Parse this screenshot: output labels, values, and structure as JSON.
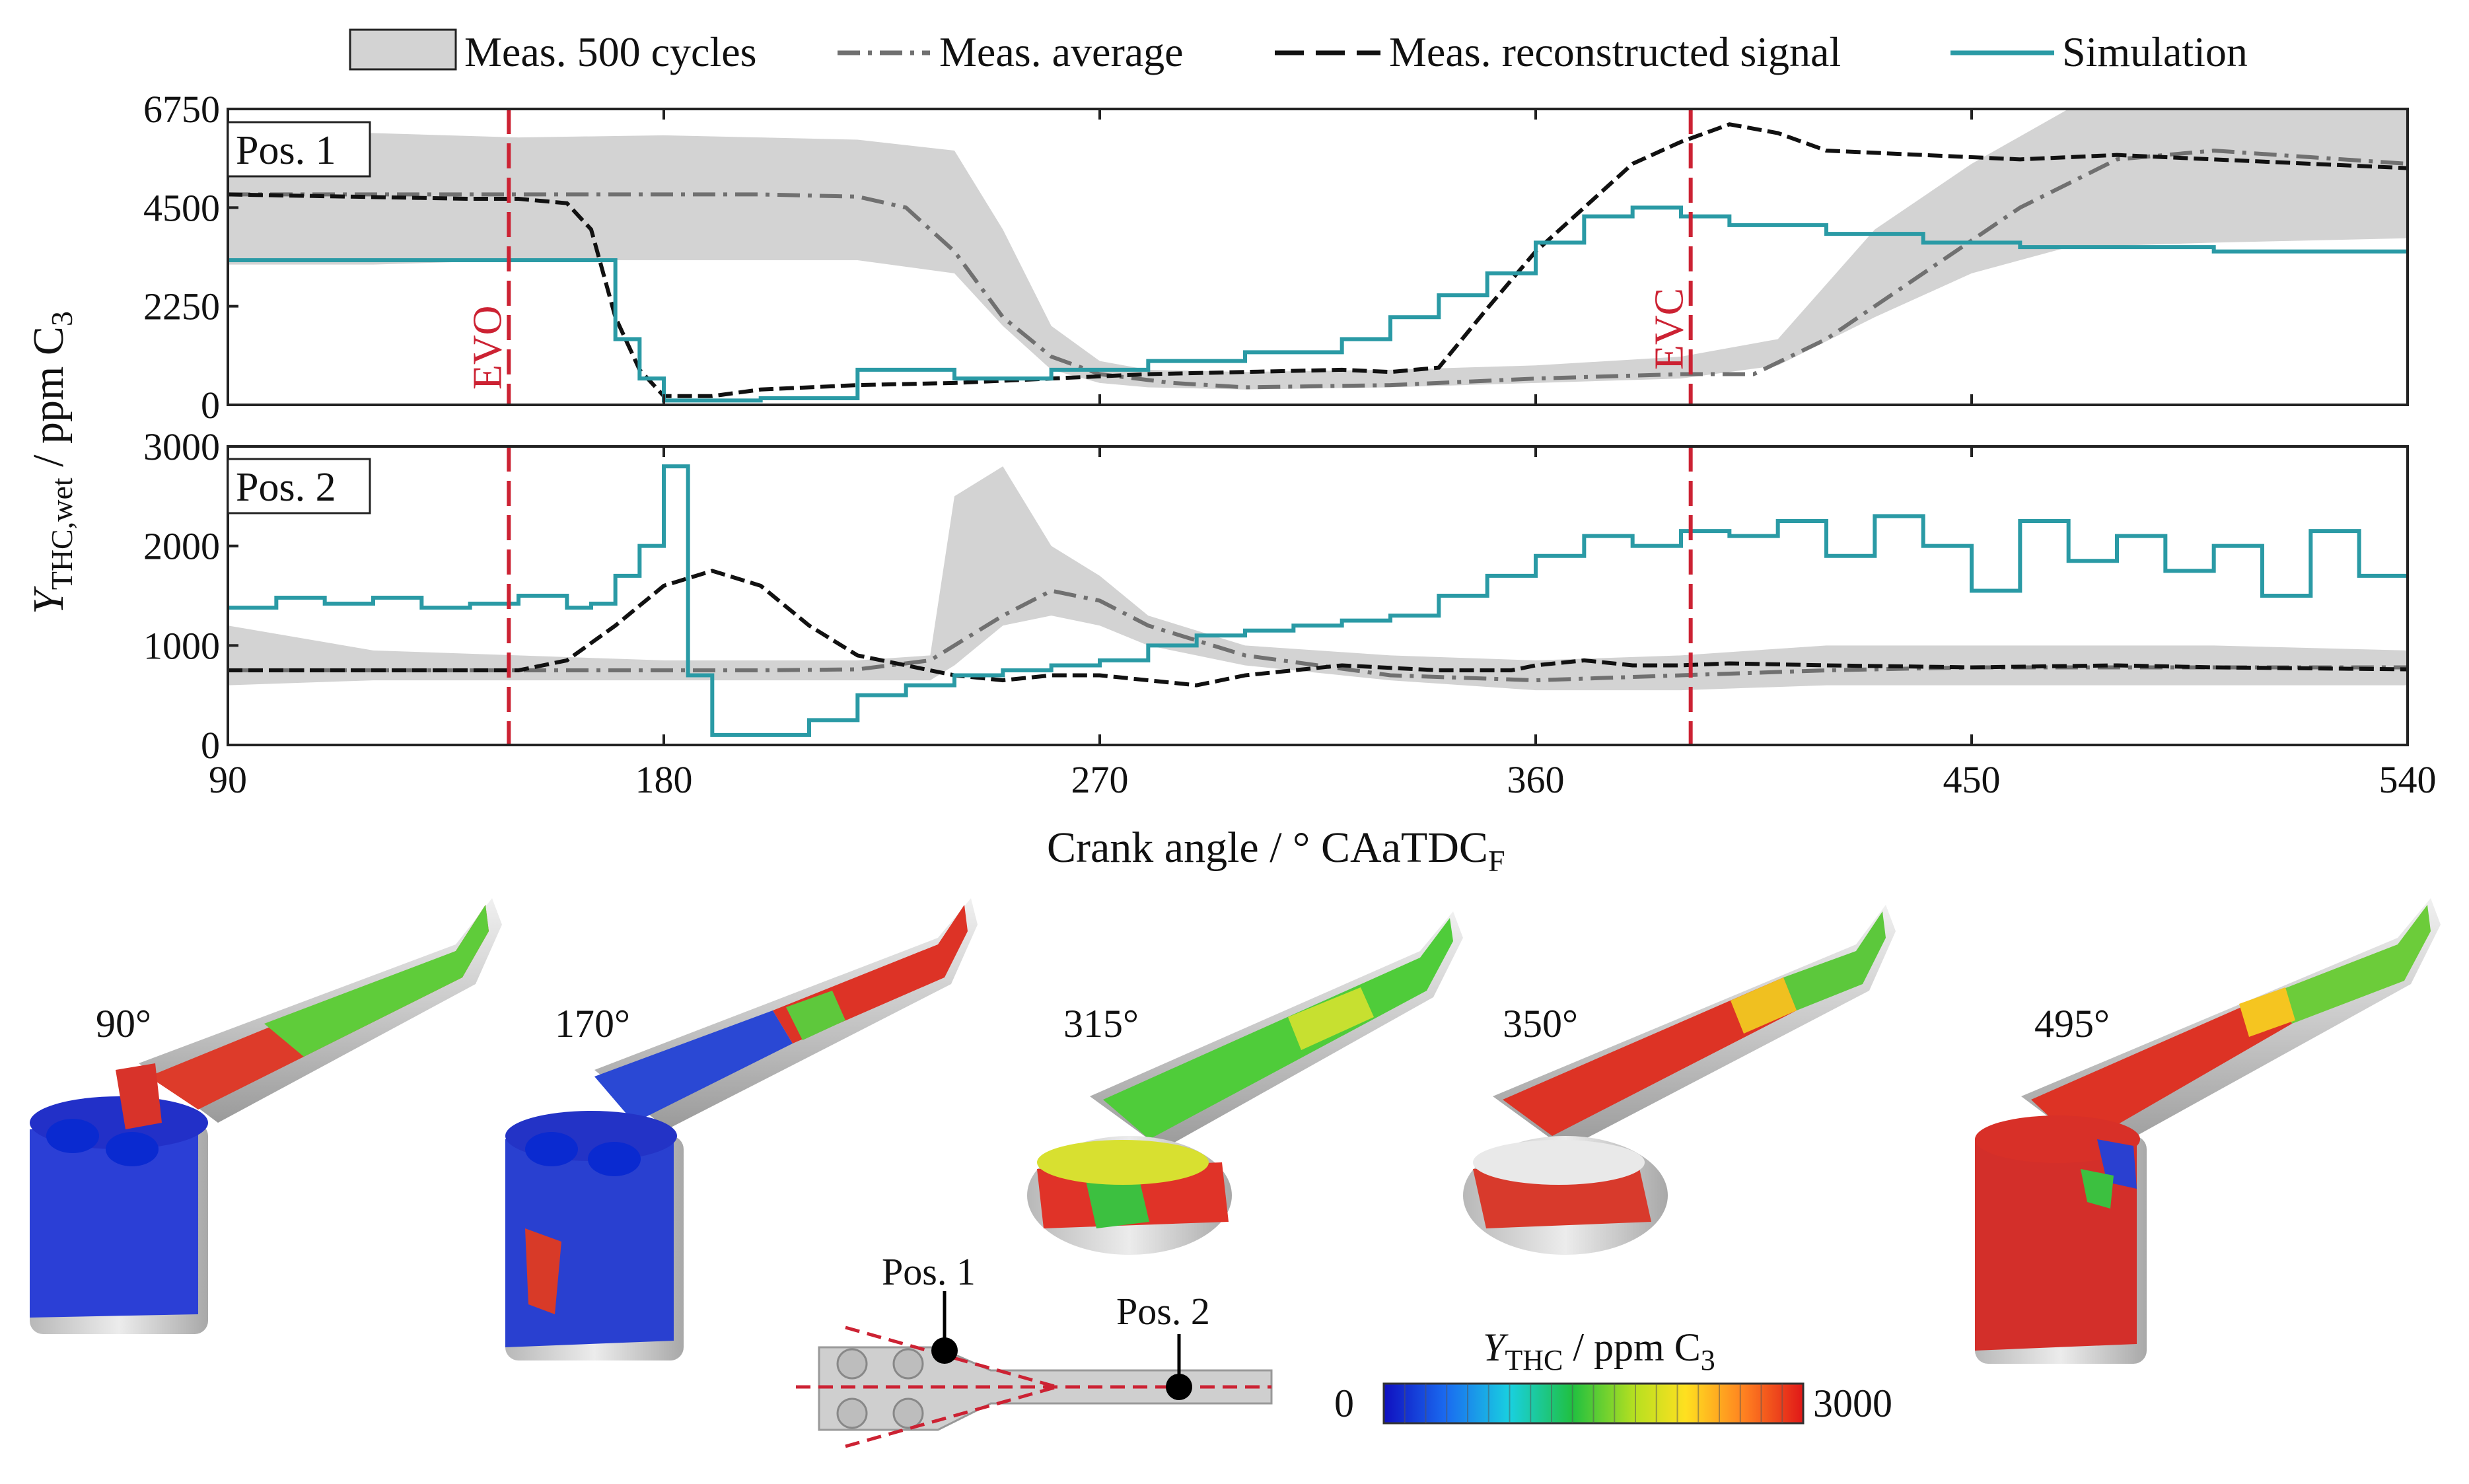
{
  "legend": {
    "band": "Meas. 500 cycles",
    "avg": "Meas. average",
    "recon": "Meas. reconstructed signal",
    "sim": "Simulation"
  },
  "colors": {
    "band": "#d3d3d3",
    "avg": "#707070",
    "recon": "#111111",
    "sim": "#2a9aa5",
    "valve": "#cc2233"
  },
  "axes": {
    "ylabel": "Y",
    "ylabel_sub": "THC,wet",
    "ylabel_rest": " / ppm C",
    "ylabel_sub2": "3",
    "xlabel": "Crank angle / ° CAaTDC",
    "xlabel_sub": "F",
    "xticks": [
      "90",
      "180",
      "270",
      "360",
      "450",
      "540"
    ]
  },
  "chart_data": [
    {
      "type": "line",
      "panel_label": "Pos. 1",
      "xlim": [
        90,
        540
      ],
      "ylim": [
        0,
        6750
      ],
      "yticks": [
        "0",
        "2250",
        "4500",
        "6750"
      ],
      "xlabel": "Crank angle / ° CAaTDC_F",
      "ylabel": "Y_THC,wet / ppm C_3",
      "valve_lines": [
        {
          "x": 148,
          "label": "EVO"
        },
        {
          "x": 392,
          "label": "EVC"
        }
      ],
      "band": {
        "x": [
          90,
          120,
          150,
          180,
          200,
          220,
          240,
          250,
          260,
          270,
          280,
          300,
          330,
          360,
          390,
          410,
          430,
          450,
          470,
          500,
          540
        ],
        "lower": [
          3200,
          3200,
          3300,
          3300,
          3300,
          3300,
          3000,
          1800,
          800,
          500,
          400,
          350,
          400,
          500,
          600,
          900,
          2000,
          3000,
          3600,
          3700,
          3800
        ],
        "upper": [
          6200,
          6200,
          6100,
          6150,
          6100,
          6050,
          5800,
          4000,
          1800,
          1000,
          800,
          750,
          800,
          900,
          1100,
          1500,
          4000,
          5500,
          6750,
          6750,
          6750
        ]
      },
      "series": [
        {
          "name": "Meas. average",
          "x": [
            90,
            150,
            200,
            220,
            230,
            240,
            250,
            260,
            270,
            285,
            300,
            330,
            360,
            390,
            405,
            420,
            440,
            460,
            480,
            500,
            540
          ],
          "y": [
            4800,
            4800,
            4800,
            4750,
            4500,
            3500,
            2000,
            1100,
            700,
            500,
            400,
            450,
            600,
            700,
            700,
            1500,
            3000,
            4500,
            5600,
            5800,
            5500
          ]
        },
        {
          "name": "Meas. reconstructed signal",
          "x": [
            90,
            140,
            150,
            160,
            165,
            170,
            175,
            180,
            190,
            200,
            220,
            240,
            260,
            280,
            300,
            320,
            330,
            340,
            350,
            360,
            370,
            380,
            390,
            400,
            410,
            420,
            440,
            460,
            480,
            500,
            540
          ],
          "y": [
            4800,
            4700,
            4700,
            4600,
            4000,
            2000,
            800,
            200,
            200,
            350,
            450,
            500,
            600,
            700,
            750,
            800,
            750,
            850,
            2200,
            3500,
            4500,
            5500,
            6000,
            6400,
            6200,
            5800,
            5700,
            5600,
            5700,
            5600,
            5400
          ]
        },
        {
          "name": "Simulation",
          "x": [
            90,
            160,
            165,
            170,
            175,
            180,
            190,
            200,
            220,
            240,
            260,
            280,
            300,
            320,
            330,
            340,
            350,
            360,
            370,
            380,
            390,
            400,
            420,
            440,
            460,
            500,
            540
          ],
          "y": [
            3300,
            3300,
            3300,
            1500,
            600,
            100,
            100,
            150,
            800,
            600,
            800,
            1000,
            1200,
            1500,
            2000,
            2500,
            3000,
            3700,
            4300,
            4500,
            4300,
            4100,
            3900,
            3700,
            3600,
            3500,
            3500
          ]
        }
      ]
    },
    {
      "type": "line",
      "panel_label": "Pos. 2",
      "xlim": [
        90,
        540
      ],
      "ylim": [
        0,
        3000
      ],
      "yticks": [
        "0",
        "1000",
        "2000",
        "3000"
      ],
      "xlabel": "Crank angle / ° CAaTDC_F",
      "ylabel": "Y_THC,wet / ppm C_3",
      "valve_lines": [
        {
          "x": 148,
          "label": "EVO"
        },
        {
          "x": 392,
          "label": "EVC"
        }
      ],
      "band": {
        "x": [
          90,
          120,
          150,
          180,
          220,
          235,
          240,
          250,
          260,
          270,
          280,
          300,
          330,
          360,
          390,
          420,
          450,
          500,
          540
        ],
        "lower": [
          600,
          650,
          650,
          650,
          650,
          650,
          800,
          1200,
          1300,
          1200,
          1000,
          800,
          650,
          550,
          550,
          600,
          600,
          600,
          600
        ],
        "upper": [
          1200,
          950,
          900,
          850,
          850,
          900,
          2500,
          2800,
          2000,
          1700,
          1300,
          1000,
          900,
          850,
          900,
          1000,
          1000,
          1000,
          950
        ]
      },
      "series": [
        {
          "name": "Meas. average",
          "x": [
            90,
            150,
            200,
            220,
            235,
            250,
            260,
            270,
            280,
            300,
            330,
            360,
            390,
            420,
            450,
            500,
            540
          ],
          "y": [
            750,
            750,
            750,
            760,
            850,
            1300,
            1550,
            1450,
            1200,
            900,
            700,
            650,
            700,
            750,
            780,
            780,
            780
          ]
        },
        {
          "name": "Meas. reconstructed signal",
          "x": [
            90,
            150,
            160,
            170,
            180,
            190,
            200,
            210,
            220,
            230,
            240,
            250,
            260,
            270,
            280,
            290,
            300,
            320,
            340,
            355,
            360,
            370,
            380,
            390,
            400,
            420,
            450,
            480,
            500,
            540
          ],
          "y": [
            750,
            750,
            850,
            1200,
            1600,
            1750,
            1600,
            1200,
            900,
            800,
            700,
            650,
            700,
            700,
            650,
            600,
            700,
            800,
            750,
            750,
            800,
            850,
            800,
            800,
            820,
            800,
            780,
            800,
            780,
            760
          ]
        },
        {
          "name": "Simulation",
          "x": [
            90,
            100,
            110,
            120,
            130,
            140,
            150,
            160,
            165,
            170,
            175,
            180,
            185,
            190,
            200,
            210,
            220,
            230,
            240,
            250,
            260,
            270,
            280,
            290,
            300,
            310,
            320,
            330,
            340,
            350,
            360,
            370,
            380,
            390,
            400,
            410,
            420,
            430,
            440,
            450,
            460,
            470,
            480,
            490,
            500,
            510,
            520,
            530,
            540
          ],
          "y": [
            1380,
            1480,
            1420,
            1480,
            1380,
            1420,
            1500,
            1380,
            1420,
            1700,
            2000,
            2800,
            700,
            100,
            100,
            250,
            500,
            600,
            700,
            750,
            800,
            850,
            1000,
            1100,
            1150,
            1200,
            1250,
            1300,
            1500,
            1700,
            1900,
            2100,
            2000,
            2150,
            2100,
            2250,
            1900,
            2300,
            2000,
            1550,
            2250,
            1850,
            2100,
            1750,
            2000,
            1500,
            2150,
            1700,
            1700
          ]
        }
      ]
    }
  ],
  "snapshots": [
    {
      "angle": "90°",
      "state": "cylinder-blue"
    },
    {
      "angle": "170°",
      "state": "blue-flush"
    },
    {
      "angle": "315°",
      "state": "green-runner"
    },
    {
      "angle": "350°",
      "state": "red-runner"
    },
    {
      "angle": "495°",
      "state": "red-cylinder"
    }
  ],
  "schematic": {
    "pos1": "Pos. 1",
    "pos2": "Pos. 2"
  },
  "colorbar": {
    "label": "Y",
    "label_sub": "THC",
    "label_rest": " / ppm C",
    "label_sub2": "3",
    "min": "0",
    "max": "3000"
  }
}
